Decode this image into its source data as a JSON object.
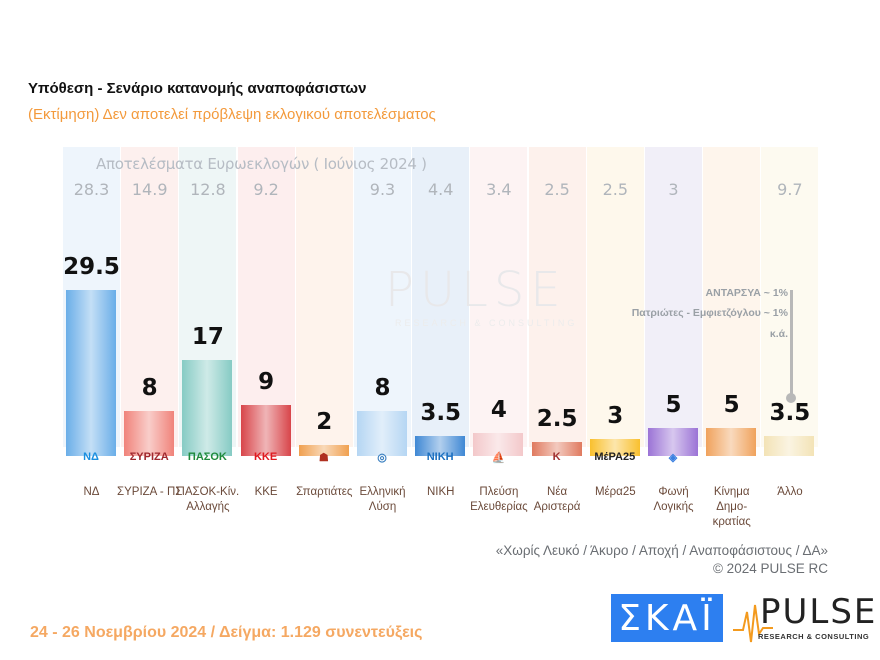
{
  "header": {
    "title": "Υπόθεση - Σενάριο κατανομής αναποφάσιστων",
    "subtitle": "(Εκτίμηση)   Δεν αποτελεί πρόβλεψη εκλογικού αποτελέσματος"
  },
  "chart_data": {
    "type": "bar",
    "euro_results_title": "Αποτελέσματα Ευρωεκλογών  ( Ιούνιος 2024 )",
    "categories": [
      "ΝΔ",
      "ΣΥΡΙΖΑ - ΠΣ",
      "ΠΑΣΟΚ-Κίν. Αλλαγής",
      "ΚΚΕ",
      "Σπαρτιάτες",
      "Ελληνική Λύση",
      "ΝΙΚΗ",
      "Πλεύση Ελευθερίας",
      "Νέα Αριστερά",
      "Μέρα25",
      "Φωνή Λογικής",
      "Κίνημα Δημο- κρατίας",
      "Άλλο"
    ],
    "values": [
      29.5,
      8,
      17,
      9,
      2,
      8,
      3.5,
      4,
      2.5,
      3,
      5,
      5,
      3.5
    ],
    "value_labels": [
      "29.5",
      "8",
      "17",
      "9",
      "2",
      "8",
      "3.5",
      "4",
      "2.5",
      "3",
      "5",
      "5",
      "3.5"
    ],
    "euro_results": [
      "28.3",
      "14.9",
      "12.8",
      "9.2",
      "",
      "9.3",
      "4.4",
      "3.4",
      "2.5",
      "2.5",
      "3",
      "",
      "9.7"
    ],
    "colors": [
      "#6aaee8",
      "#f0837a",
      "#86cbc4",
      "#d8454a",
      "#f0a050",
      "#b5d6f3",
      "#3f88d4",
      "#f3c8ca",
      "#e07a5f",
      "#f9c02e",
      "#9b73d6",
      "#f0a25c",
      "#f3e3b6"
    ],
    "bg_colors": [
      "#eef5fc",
      "#fdf0ee",
      "#eef6f6",
      "#fdeeee",
      "#fef3ec",
      "#eef5fc",
      "#e8f0f9",
      "#fdf3f3",
      "#fdf1ec",
      "#fef8ec",
      "#f1eff8",
      "#fef5ec",
      "#fdfaf0"
    ],
    "logos": [
      "ΝΔ",
      "ΣΥΡΙΖΑ",
      "ΠΑΣΟΚ",
      "ΚΚΕ",
      "☗",
      "◎",
      "NIKH",
      "⛵",
      "Κ",
      "MέPA25",
      "◈",
      "",
      ""
    ],
    "logo_colors": [
      "#1a8fe0",
      "#a0282e",
      "#1e8a3c",
      "#e0191f",
      "#b03020",
      "#3a7fc0",
      "#1a6fc0",
      "#a030b0",
      "#a03030",
      "#222",
      "#3a7fe0",
      "",
      ""
    ],
    "ylim": [
      0,
      30
    ]
  },
  "other_note": {
    "line1": "ΑΝΤΑΡΣΥΑ ~ 1%",
    "line2": "Πατριώτες - Εμφιετζόγλου ~ 1%",
    "line3": "κ.ά."
  },
  "watermark": {
    "brand": "PULSE",
    "tagline": "RESEARCH & CONSULTING"
  },
  "footer": {
    "note": "«Χωρίς Λευκό / Άκυρο / Αποχή / Αναποφάσιστους / ΔΑ»",
    "copyright": "©  2024  PULSE RC",
    "date_sample": "24 - 26 Νοεμβρίου 2024  /  Δείγμα:  1.129 συνεντεύξεις",
    "skai_logo": "ΣΚΑΪ",
    "pulse_logo": "PULSE",
    "pulse_tagline": "RESEARCH & CONSULTING"
  }
}
